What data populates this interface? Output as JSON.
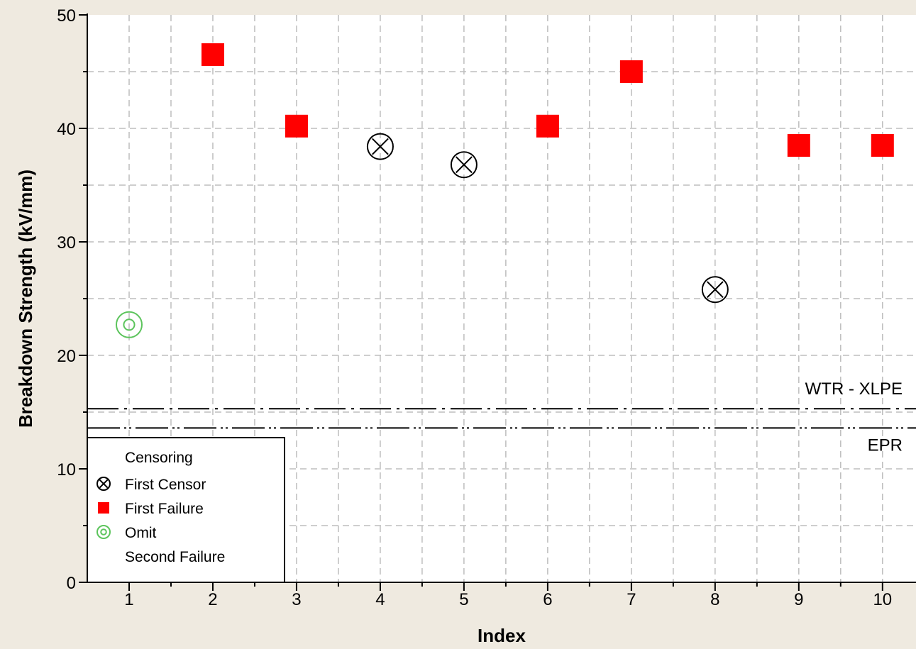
{
  "chart_data": {
    "type": "scatter",
    "xlabel": "Index",
    "ylabel": "Breakdown Strength (kV/mm)",
    "xlim": [
      0.5,
      10.4
    ],
    "ylim": [
      0,
      50
    ],
    "x_ticks": [
      1,
      2,
      3,
      4,
      5,
      6,
      7,
      8,
      9,
      10
    ],
    "y_ticks": [
      0,
      10,
      20,
      30,
      40,
      50
    ],
    "grid": true,
    "legend_position": "bottom-left",
    "legend_title": "Censoring",
    "legend": [
      {
        "name": "First Censor",
        "marker": "circle-x",
        "color": "#000000"
      },
      {
        "name": "First Failure",
        "marker": "square",
        "color": "#FF0000"
      },
      {
        "name": "Omit",
        "marker": "double-circle",
        "color": "#5CC45C"
      },
      {
        "name": "Second Failure",
        "marker": "none",
        "color": "#000000"
      }
    ],
    "series": [
      {
        "name": "First Censor",
        "marker": "circle-x",
        "color": "#000000",
        "points": [
          {
            "x": 4,
            "y": 38.4
          },
          {
            "x": 5,
            "y": 36.8
          },
          {
            "x": 8,
            "y": 25.8
          }
        ]
      },
      {
        "name": "First Failure",
        "marker": "square",
        "color": "#FF0000",
        "points": [
          {
            "x": 2,
            "y": 46.5
          },
          {
            "x": 3,
            "y": 40.2
          },
          {
            "x": 6,
            "y": 40.2
          },
          {
            "x": 7,
            "y": 45.0
          },
          {
            "x": 9,
            "y": 38.5
          },
          {
            "x": 10,
            "y": 38.5
          }
        ]
      },
      {
        "name": "Omit",
        "marker": "double-circle",
        "color": "#5CC45C",
        "points": [
          {
            "x": 1,
            "y": 22.7
          }
        ]
      }
    ],
    "reference_lines": [
      {
        "label": "WTR - XLPE",
        "y": 15.3,
        "style": "dash-dot"
      },
      {
        "label": "EPR",
        "y": 13.6,
        "style": "dash-dot-dot"
      }
    ]
  }
}
